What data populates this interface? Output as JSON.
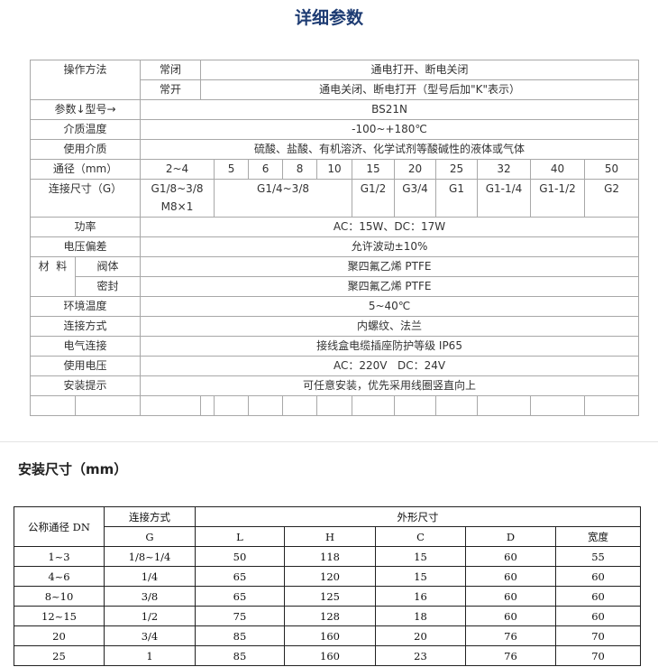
{
  "title": "详细参数",
  "params": {
    "operation_label": "操作方法",
    "nc_label": "常闭",
    "nc_value": "通电打开、断电关闭",
    "no_label": "常开",
    "no_value": "通电关闭、断电打开（型号后加\"K\"表示）",
    "model_label": "参数↓型号→",
    "model_value": "BS21N",
    "medium_temp_label": "介质温度",
    "medium_temp_value": "-100~+180℃",
    "medium_label": "使用介质",
    "medium_value": "硫酸、盐酸、有机溶济、化学试剂等酸碱性的液体或气体",
    "bore_label": "通径（mm）",
    "bores": [
      "2~4",
      "5",
      "6",
      "8",
      "10",
      "15",
      "20",
      "25",
      "32",
      "40",
      "50"
    ],
    "conn_size_label": "连接尺寸（G）",
    "conn_sizes": [
      "G1/8~3/8",
      "M8×1",
      "G1/4~3/8",
      "G1/2",
      "G3/4",
      "G1",
      "G1-1/4",
      "G1-1/2",
      "G2"
    ],
    "power_label": "功率",
    "power_value": "AC：15W、DC：17W",
    "voltage_dev_label": "电压偏差",
    "voltage_dev_value": "允许波动±10%",
    "material_label": "材  料",
    "body_label": "阀体",
    "body_value": "聚四氟乙烯 PTFE",
    "seal_label": "密封",
    "seal_value": "聚四氟乙烯 PTFE",
    "ambient_label": "环境温度",
    "ambient_value": "5~40℃",
    "connection_label": "连接方式",
    "connection_value": "内螺纹、法兰",
    "electric_label": "电气连接",
    "electric_value": "接线盒电缆插座防护等级 IP65",
    "voltage_label": "使用电压",
    "voltage_value": "AC：220V   DC：24V",
    "install_label": "安装提示",
    "install_value": "可任意安装，优先采用线圈竖直向上"
  },
  "dims": {
    "heading": "安装尺寸（mm）",
    "h_dn": "公称通径 DN",
    "h_conn": "连接方式",
    "h_outer": "外形尺寸",
    "cols": [
      "G",
      "L",
      "H",
      "C",
      "D",
      "宽度"
    ],
    "rows": [
      [
        "1~3",
        "1/8~1/4",
        "50",
        "118",
        "15",
        "60",
        "55"
      ],
      [
        "4~6",
        "1/4",
        "65",
        "120",
        "15",
        "60",
        "60"
      ],
      [
        "8~10",
        "3/8",
        "65",
        "125",
        "16",
        "60",
        "60"
      ],
      [
        "12~15",
        "1/2",
        "75",
        "128",
        "18",
        "60",
        "60"
      ],
      [
        "20",
        "3/4",
        "85",
        "160",
        "20",
        "76",
        "70"
      ],
      [
        "25",
        "1",
        "85",
        "160",
        "23",
        "76",
        "70"
      ]
    ]
  }
}
